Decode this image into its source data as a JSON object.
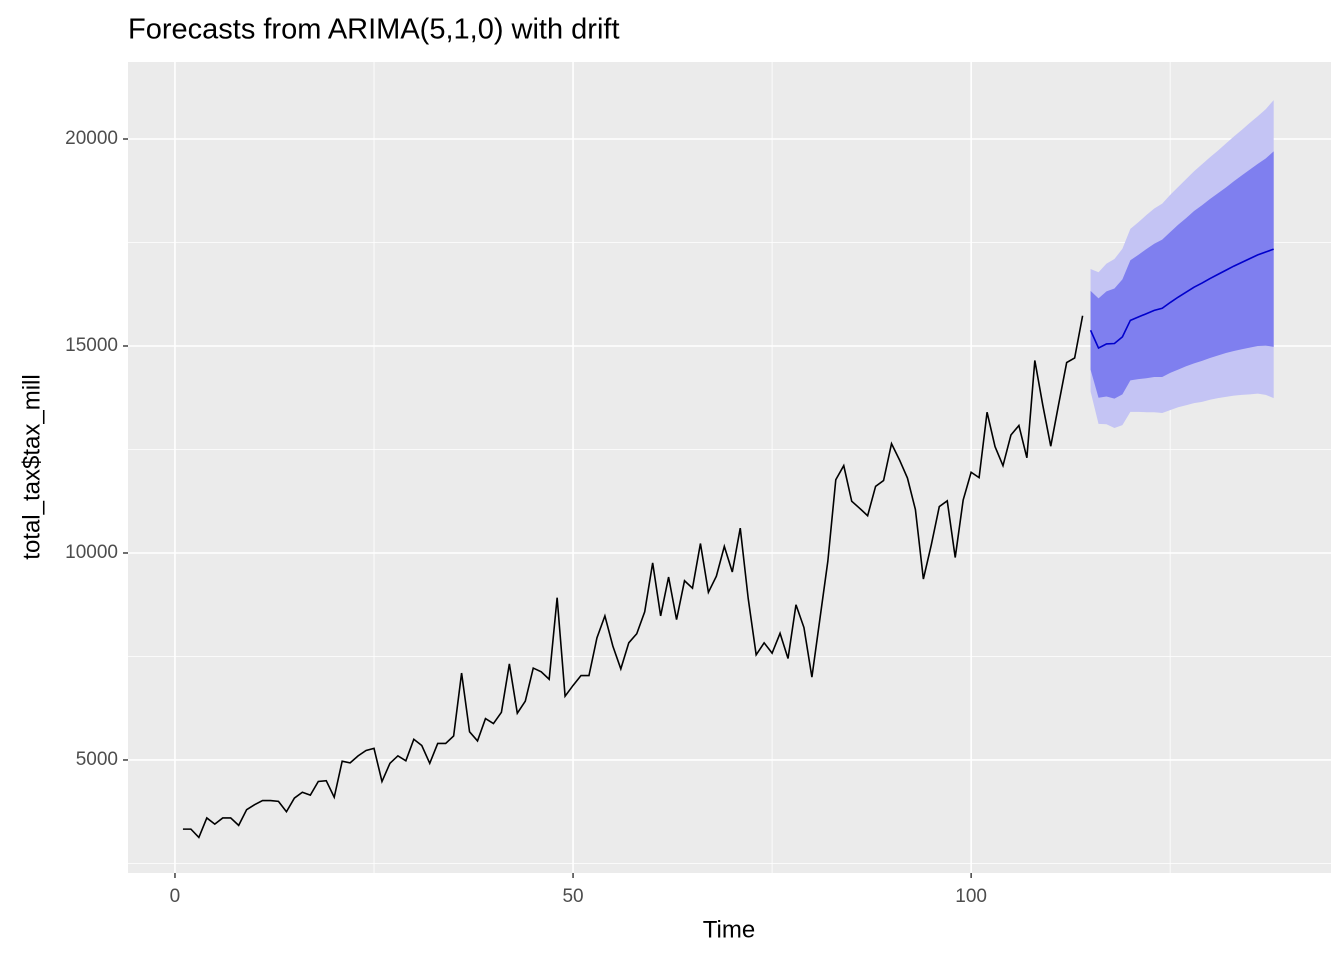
{
  "chart_data": {
    "type": "forecast",
    "title": "Forecasts from ARIMA(5,1,0) with drift",
    "x_label": "Time",
    "y_label": "total_tax$tax_mill",
    "xlim": [
      -5.9,
      145.2
    ],
    "ylim": [
      2270,
      21860
    ],
    "xticks": [
      0,
      50,
      100
    ],
    "yticks": [
      5000,
      10000,
      15000,
      20000
    ],
    "minor_xticks": [
      25,
      75,
      125
    ],
    "minor_yticks": [
      2500,
      7500,
      12500,
      17500
    ],
    "grid": true,
    "x": [
      1,
      2,
      3,
      4,
      5,
      6,
      7,
      8,
      9,
      10,
      11,
      12,
      13,
      14,
      15,
      16,
      17,
      18,
      19,
      20,
      21,
      22,
      23,
      24,
      25,
      26,
      27,
      28,
      29,
      30,
      31,
      32,
      33,
      34,
      35,
      36,
      37,
      38,
      39,
      40,
      41,
      42,
      43,
      44,
      45,
      46,
      47,
      48,
      49,
      50,
      51,
      52,
      53,
      54,
      55,
      56,
      57,
      58,
      59,
      60,
      61,
      62,
      63,
      64,
      65,
      66,
      67,
      68,
      69,
      70,
      71,
      72,
      73,
      74,
      75,
      76,
      77,
      78,
      79,
      80,
      81,
      82,
      83,
      84,
      85,
      86,
      87,
      88,
      89,
      90,
      91,
      92,
      93,
      94,
      95,
      96,
      97,
      98,
      99,
      100,
      101,
      102,
      103,
      104,
      105,
      106,
      107,
      108,
      109,
      110,
      111,
      112,
      113,
      114
    ],
    "series": [
      {
        "color": "#000000",
        "values": [
          3330,
          3330,
          3130,
          3600,
          3450,
          3600,
          3600,
          3420,
          3800,
          3920,
          4020,
          4020,
          4000,
          3750,
          4080,
          4220,
          4150,
          4480,
          4500,
          4100,
          4970,
          4930,
          5100,
          5230,
          5280,
          4480,
          4920,
          5100,
          4980,
          5500,
          5350,
          4920,
          5400,
          5400,
          5580,
          7100,
          5680,
          5460,
          6000,
          5880,
          6150,
          7320,
          6130,
          6420,
          7220,
          7130,
          6950,
          8920,
          6540,
          6800,
          7040,
          7040,
          7950,
          8480,
          7750,
          7200,
          7830,
          8050,
          8580,
          9760,
          8480,
          9420,
          8390,
          9330,
          9150,
          10230,
          9050,
          9440,
          10160,
          9540,
          10600,
          8900,
          7540,
          7830,
          7580,
          8060,
          7450,
          8750,
          8200,
          7000,
          8400,
          9800,
          11770,
          12110,
          11250,
          11080,
          10900,
          11610,
          11750,
          12640,
          12250,
          11810,
          11050,
          9370,
          10200,
          11120,
          11260,
          9890,
          11280,
          11950,
          11820,
          13400,
          12570,
          12110,
          12850,
          13080,
          12300,
          14650,
          13570,
          12580,
          13600,
          14600,
          14710,
          15730
        ]
      }
    ],
    "forecast": {
      "x": [
        115,
        116,
        117,
        118,
        119,
        120,
        121,
        122,
        123,
        124,
        125,
        126,
        127,
        128,
        129,
        130,
        131,
        132,
        133,
        134,
        135,
        136,
        137,
        138
      ],
      "color": "#0000cc",
      "mean": [
        15380,
        14950,
        15050,
        15060,
        15220,
        15620,
        15700,
        15780,
        15860,
        15910,
        16050,
        16180,
        16300,
        16420,
        16520,
        16630,
        16730,
        16830,
        16930,
        17020,
        17110,
        17200,
        17270,
        17340
      ],
      "bands": [
        {
          "color": "#c4c4f4",
          "lower": [
            13900,
            13120,
            13110,
            13020,
            13090,
            13410,
            13410,
            13400,
            13400,
            13380,
            13450,
            13520,
            13570,
            13620,
            13650,
            13700,
            13740,
            13770,
            13800,
            13820,
            13830,
            13850,
            13820,
            13740
          ],
          "upper": [
            16860,
            16780,
            16990,
            17100,
            17350,
            17830,
            17990,
            18160,
            18320,
            18440,
            18650,
            18840,
            19030,
            19220,
            19390,
            19560,
            19720,
            19890,
            20060,
            20220,
            20390,
            20550,
            20720,
            20940
          ]
        },
        {
          "color": "#7f7fef",
          "lower": [
            14430,
            13750,
            13780,
            13730,
            13830,
            14170,
            14200,
            14220,
            14250,
            14250,
            14350,
            14430,
            14510,
            14580,
            14640,
            14710,
            14770,
            14830,
            14880,
            14920,
            14960,
            15000,
            15010,
            14980
          ],
          "upper": [
            16330,
            16150,
            16320,
            16390,
            16610,
            17070,
            17200,
            17340,
            17470,
            17570,
            17750,
            17930,
            18090,
            18260,
            18400,
            18550,
            18690,
            18830,
            18980,
            19120,
            19260,
            19400,
            19530,
            19700
          ]
        }
      ]
    }
  }
}
